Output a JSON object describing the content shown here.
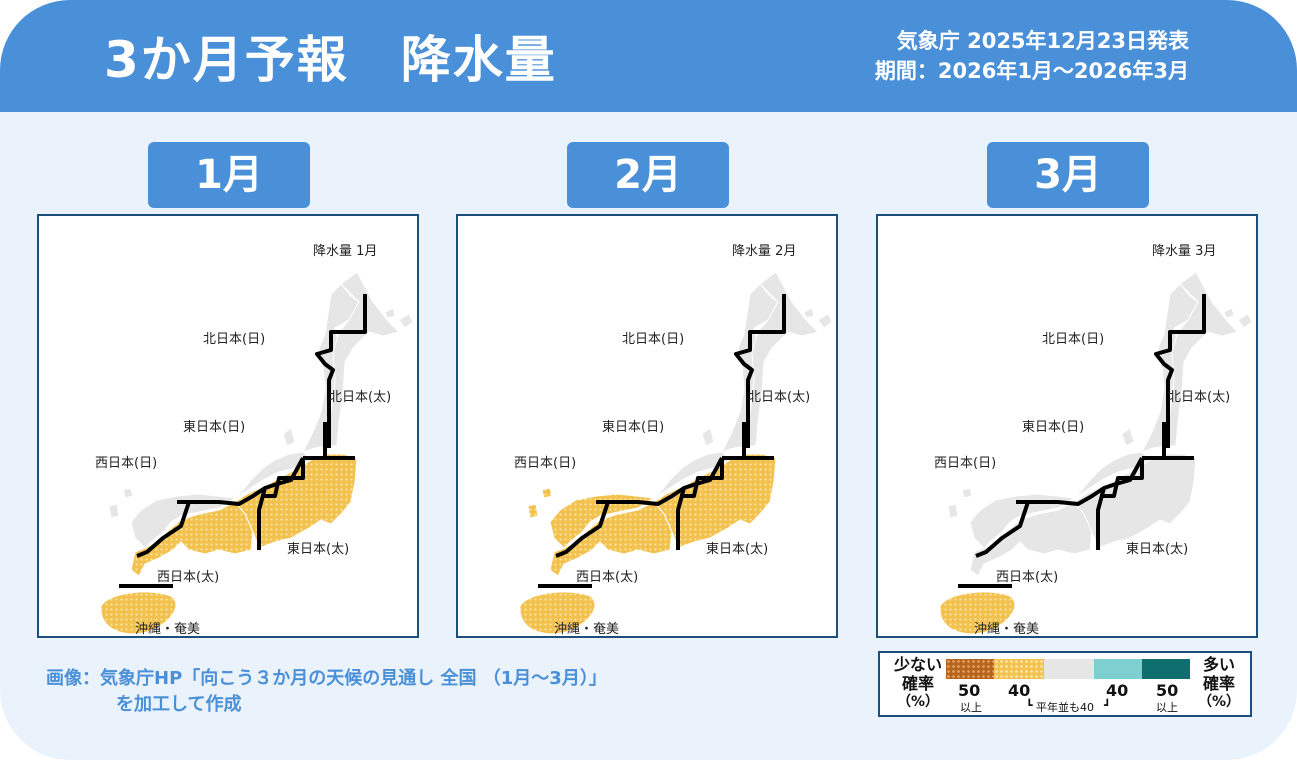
{
  "header": {
    "title": "3か月予報　降水量",
    "issued": "気象庁 2025年12月23日発表",
    "period": "期間：2026年1月～2026年3月"
  },
  "months": [
    {
      "tab": "1月",
      "map_title": "降水量 1月",
      "regions": {
        "hokkaido_n": "北日本(日)",
        "hokkaido_p": "北日本(太)",
        "east_n": "東日本(日)",
        "east_p": "東日本(太)",
        "west_n": "西日本(日)",
        "west_p": "西日本(太)",
        "okinawa": "沖縄・奄美"
      },
      "forecast": {
        "北日本(日)": "平年並",
        "北日本(太)": "平年並",
        "東日本(日)": "平年並",
        "東日本(太)": "少ない 40",
        "西日本(日)": "平年並",
        "西日本(太)": "少ない 40",
        "沖縄・奄美": "少ない 40"
      }
    },
    {
      "tab": "2月",
      "map_title": "降水量 2月",
      "regions": {
        "hokkaido_n": "北日本(日)",
        "hokkaido_p": "北日本(太)",
        "east_n": "東日本(日)",
        "east_p": "東日本(太)",
        "west_n": "西日本(日)",
        "west_p": "西日本(太)",
        "okinawa": "沖縄・奄美"
      },
      "forecast": {
        "北日本(日)": "平年並",
        "北日本(太)": "平年並",
        "東日本(日)": "平年並",
        "東日本(太)": "少ない 40",
        "西日本(日)": "少ない 40",
        "西日本(太)": "少ない 40",
        "沖縄・奄美": "少ない 40"
      }
    },
    {
      "tab": "3月",
      "map_title": "降水量 3月",
      "regions": {
        "hokkaido_n": "北日本(日)",
        "hokkaido_p": "北日本(太)",
        "east_n": "東日本(日)",
        "east_p": "東日本(太)",
        "west_n": "西日本(日)",
        "west_p": "西日本(太)",
        "okinawa": "沖縄・奄美"
      },
      "forecast": {
        "北日本(日)": "平年並",
        "北日本(太)": "平年並",
        "東日本(日)": "平年並",
        "東日本(太)": "平年並",
        "西日本(日)": "平年並",
        "西日本(太)": "平年並",
        "沖縄・奄美": "少ない 40"
      }
    }
  ],
  "credit": {
    "line1": "画像：気象庁HP「向こう３か月の天候の見通し 全国 （1月～3月）」",
    "line2": "を加工して作成"
  },
  "legend": {
    "less_label_1": "少ない",
    "less_label_2": "確率",
    "less_label_3": "（%）",
    "more_label_1": "多い",
    "more_label_2": "確率",
    "more_label_3": "（%）",
    "less_50": "50",
    "less_40": "40",
    "more_40": "40",
    "more_50": "50",
    "above_1": "以上",
    "above_2": "以上",
    "normal": "平年並も40",
    "colors": {
      "less_50": "#b5651d",
      "less_40": "#f2c14e",
      "normal": "#e6e6e6",
      "more_40": "#7ecfcf",
      "more_50": "#0f6e6e",
      "boundary": "#000000"
    }
  }
}
